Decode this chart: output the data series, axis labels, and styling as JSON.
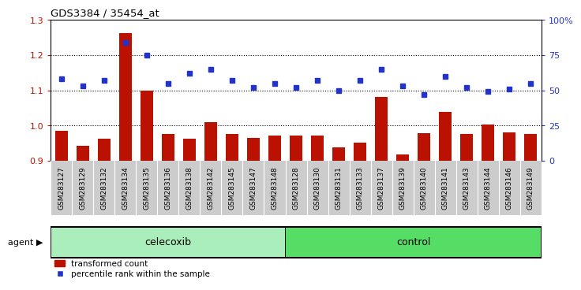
{
  "title": "GDS3384 / 35454_at",
  "categories": [
    "GSM283127",
    "GSM283129",
    "GSM283132",
    "GSM283134",
    "GSM283135",
    "GSM283136",
    "GSM283138",
    "GSM283142",
    "GSM283145",
    "GSM283147",
    "GSM283148",
    "GSM283128",
    "GSM283130",
    "GSM283131",
    "GSM283133",
    "GSM283137",
    "GSM283139",
    "GSM283140",
    "GSM283141",
    "GSM283143",
    "GSM283144",
    "GSM283146",
    "GSM283149"
  ],
  "bar_values": [
    0.984,
    0.943,
    0.962,
    1.262,
    1.1,
    0.975,
    0.963,
    1.009,
    0.975,
    0.965,
    0.972,
    0.972,
    0.972,
    0.937,
    0.951,
    1.082,
    0.919,
    0.978,
    1.038,
    0.977,
    1.002,
    0.981,
    0.975
  ],
  "percentile_values": [
    58,
    53,
    57,
    84,
    75,
    55,
    62,
    65,
    57,
    52,
    55,
    52,
    57,
    50,
    57,
    65,
    53,
    47,
    60,
    52,
    49,
    51,
    55
  ],
  "bar_color": "#bb1100",
  "percentile_color": "#2233cc",
  "ylim_left": [
    0.9,
    1.3
  ],
  "ylim_right": [
    0,
    100
  ],
  "yticks_left": [
    0.9,
    1.0,
    1.1,
    1.2,
    1.3
  ],
  "yticks_right": [
    0,
    25,
    50,
    75,
    100
  ],
  "ytick_labels_right": [
    "0",
    "25",
    "50",
    "75",
    "100%"
  ],
  "celecoxib_count": 11,
  "agent_label": "agent",
  "celecoxib_label": "celecoxib",
  "control_label": "control",
  "legend_bar_label": "transformed count",
  "legend_dot_label": "percentile rank within the sample",
  "celecoxib_color": "#aaeebb",
  "control_color": "#55dd66",
  "tick_bg_color": "#cccccc",
  "white": "#ffffff"
}
